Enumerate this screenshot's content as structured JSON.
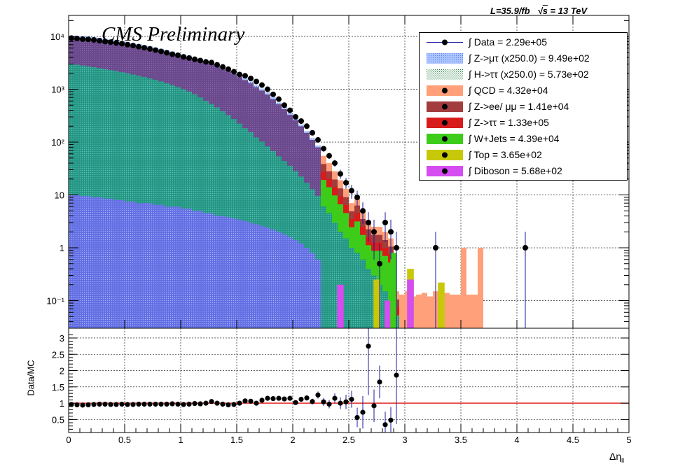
{
  "header": {
    "lumi": "L=35.9/fb",
    "sqrts": "s",
    "energy": " = 13 TeV",
    "title": "CMS Preliminary"
  },
  "legend": {
    "entries": [
      {
        "label": "∫ Data = 2.29e+05",
        "color": "#000000",
        "kind": "data"
      },
      {
        "label": "∫ Z->μτ (x250.0) = 9.49e+02",
        "color": "#5b8df5",
        "kind": "hatch"
      },
      {
        "label": "∫ H->ττ (x250.0) = 5.73e+02",
        "color": "#2e8b57",
        "kind": "hatch"
      },
      {
        "label": "∫ QCD = 4.32e+04",
        "color": "#ffa07a",
        "kind": "fill"
      },
      {
        "label": "∫ Z->ee/ μμ = 1.41e+04",
        "color": "#a33c3c",
        "kind": "fill"
      },
      {
        "label": "∫ Z->ττ = 1.33e+05",
        "color": "#d81b1b",
        "kind": "fill"
      },
      {
        "label": "∫ W+Jets = 4.39e+04",
        "color": "#3dcc1a",
        "kind": "fill"
      },
      {
        "label": "∫ Top = 3.65e+02",
        "color": "#c8c80a",
        "kind": "fill"
      },
      {
        "label": "∫ Diboson = 5.68e+02",
        "color": "#d54cf0",
        "kind": "fill"
      }
    ]
  },
  "axes": {
    "ylabel_ratio": "Data/MC",
    "xlabel": "Δη",
    "xlabel_sub": "ll"
  },
  "chart_data": [
    {
      "type": "bar",
      "subtype": "stacked-histogram",
      "log_y": true,
      "xlim": [
        0,
        5
      ],
      "ylim": [
        0.03,
        25000
      ],
      "xticks": [
        0,
        0.5,
        1,
        1.5,
        2,
        2.5,
        3,
        3.5,
        4,
        4.5,
        5
      ],
      "yticks": [
        0.1,
        1,
        10,
        100,
        1000,
        10000
      ],
      "ytick_labels": [
        "10⁻¹",
        "1",
        "10",
        "10²",
        "10³",
        "10⁴"
      ],
      "grid": true,
      "legend_position": "top-right",
      "bin_width": 0.05,
      "x_bin_centers": [
        0.025,
        0.075,
        0.125,
        0.175,
        0.225,
        0.275,
        0.325,
        0.375,
        0.425,
        0.475,
        0.525,
        0.575,
        0.625,
        0.675,
        0.725,
        0.775,
        0.825,
        0.875,
        0.925,
        0.975,
        1.025,
        1.075,
        1.125,
        1.175,
        1.225,
        1.275,
        1.325,
        1.375,
        1.425,
        1.475,
        1.525,
        1.575,
        1.625,
        1.675,
        1.725,
        1.775,
        1.825,
        1.875,
        1.925,
        1.975,
        2.025,
        2.075,
        2.125,
        2.175,
        2.225,
        2.275,
        2.325,
        2.375,
        2.425,
        2.475,
        2.525,
        2.575,
        2.625,
        2.675,
        2.725,
        2.775,
        2.825,
        2.875,
        2.925,
        2.975,
        3.025,
        3.075,
        3.125,
        3.175,
        3.225,
        3.275,
        3.325,
        3.375,
        3.425,
        3.475,
        3.525,
        3.575,
        3.625,
        3.675
      ],
      "stack_total": [
        9500,
        9500,
        9400,
        9200,
        9000,
        8700,
        8400,
        8100,
        7800,
        7500,
        7200,
        6900,
        6600,
        6300,
        6000,
        5700,
        5400,
        5100,
        4800,
        4500,
        4250,
        4000,
        3750,
        3500,
        3250,
        3000,
        2700,
        2450,
        2200,
        1950,
        1700,
        1500,
        1300,
        1100,
        950,
        800,
        650,
        520,
        420,
        330,
        260,
        200,
        150,
        110,
        80,
        55,
        40,
        28,
        19,
        13,
        7,
        9,
        5,
        3.2,
        2.5,
        2.5,
        2,
        1.5,
        0.15,
        0.13,
        0.15,
        0.12,
        0.13,
        0.14,
        0.12,
        0.15,
        0.12,
        0.14,
        0.13,
        0.13,
        1,
        0.13,
        0.13,
        1
      ],
      "series": [
        {
          "name": "Z->μτ (x250.0)",
          "values": [
            10,
            10,
            9.5,
            9.5,
            9,
            9,
            8.5,
            8.5,
            8,
            8,
            7.5,
            7.5,
            7,
            7,
            7,
            6.5,
            6.5,
            6,
            6,
            6,
            5.5,
            5.5,
            5,
            5,
            4.5,
            4.5,
            4,
            4,
            3.8,
            3.6,
            3.4,
            3.2,
            3,
            2.8,
            2.6,
            2.4,
            2.2,
            2,
            1.8,
            1.6,
            1.4,
            1.2,
            1,
            0.8,
            0.6,
            0.5,
            0.4,
            0.3,
            0.25,
            0.2,
            0.15,
            0.12,
            0.1,
            0.08,
            0.05,
            0.04,
            0.03,
            0.03,
            0,
            0,
            0,
            0,
            0,
            0,
            0,
            0,
            0,
            0,
            0,
            0,
            0,
            0,
            0,
            0
          ]
        },
        {
          "name": "H->ττ (x250.0)",
          "values": [
            3000,
            2900,
            2800,
            2700,
            2600,
            2500,
            2400,
            2300,
            2200,
            2100,
            2000,
            1900,
            1800,
            1700,
            1600,
            1500,
            1400,
            1300,
            1200,
            1100,
            1000,
            900,
            800,
            700,
            600,
            520,
            450,
            380,
            320,
            270,
            220,
            180,
            150,
            120,
            100,
            80,
            65,
            52,
            42,
            34,
            27,
            21,
            16,
            12,
            9,
            6,
            4.5,
            3,
            2,
            1.5,
            1,
            0.8,
            0.6,
            0.4,
            0.3,
            0.2,
            0.15,
            0.1,
            0,
            0,
            0,
            0,
            0,
            0,
            0,
            0,
            0,
            0,
            0,
            0,
            0,
            0,
            0,
            0
          ]
        }
      ]
    },
    {
      "type": "scatter",
      "name": "Data",
      "x": [
        0.025,
        0.075,
        0.125,
        0.175,
        0.225,
        0.275,
        0.325,
        0.375,
        0.425,
        0.475,
        0.525,
        0.575,
        0.625,
        0.675,
        0.725,
        0.775,
        0.825,
        0.875,
        0.925,
        0.975,
        1.025,
        1.075,
        1.125,
        1.175,
        1.225,
        1.275,
        1.325,
        1.375,
        1.425,
        1.475,
        1.525,
        1.575,
        1.625,
        1.675,
        1.725,
        1.775,
        1.825,
        1.875,
        1.925,
        1.975,
        2.025,
        2.075,
        2.125,
        2.175,
        2.225,
        2.275,
        2.325,
        2.375,
        2.425,
        2.475,
        2.525,
        2.575,
        2.625,
        2.675,
        2.725,
        2.775,
        2.825,
        2.875,
        2.925,
        3.275,
        4.075
      ],
      "y": [
        9300,
        9100,
        8900,
        8800,
        8600,
        8300,
        8000,
        7800,
        7500,
        7300,
        7000,
        6700,
        6400,
        6100,
        5800,
        5500,
        5200,
        4900,
        4600,
        4400,
        4100,
        3900,
        3700,
        3500,
        3300,
        3200,
        2900,
        2650,
        2400,
        2150,
        1900,
        1800,
        1600,
        1400,
        1200,
        1000,
        800,
        650,
        500,
        400,
        300,
        250,
        200,
        150,
        110,
        75,
        55,
        40,
        25,
        17,
        12,
        9,
        5,
        3,
        2,
        0.5,
        3,
        2,
        1,
        1,
        1
      ],
      "y_err": [
        96,
        95,
        94,
        94,
        93,
        91,
        89,
        88,
        87,
        85,
        84,
        82,
        80,
        78,
        76,
        74,
        72,
        70,
        68,
        66,
        64,
        62,
        61,
        59,
        57,
        57,
        54,
        51,
        49,
        46,
        44,
        42,
        40,
        37,
        35,
        32,
        28,
        25,
        22,
        20,
        17,
        16,
        14,
        12,
        10,
        9,
        7,
        6,
        5,
        4,
        3.5,
        3,
        2.2,
        1.7,
        1.4,
        0.7,
        1.7,
        1.4,
        1,
        1,
        1
      ]
    },
    {
      "type": "scatter",
      "name": "Data/MC",
      "xlim": [
        0,
        5
      ],
      "ylim": [
        0.1,
        3.3
      ],
      "yticks": [
        0.5,
        1,
        1.5,
        2,
        2.5,
        3
      ],
      "reference_line": 1,
      "x": [
        0.025,
        0.075,
        0.125,
        0.175,
        0.225,
        0.275,
        0.325,
        0.375,
        0.425,
        0.475,
        0.525,
        0.575,
        0.625,
        0.675,
        0.725,
        0.775,
        0.825,
        0.875,
        0.925,
        0.975,
        1.025,
        1.075,
        1.125,
        1.175,
        1.225,
        1.275,
        1.325,
        1.375,
        1.425,
        1.475,
        1.525,
        1.575,
        1.625,
        1.675,
        1.725,
        1.775,
        1.825,
        1.875,
        1.925,
        1.975,
        2.025,
        2.075,
        2.125,
        2.175,
        2.225,
        2.275,
        2.325,
        2.375,
        2.425,
        2.475,
        2.525,
        2.575,
        2.625,
        2.675,
        2.725,
        2.775,
        2.825,
        2.875,
        2.925
      ],
      "y": [
        0.96,
        0.95,
        0.94,
        0.95,
        0.96,
        0.97,
        0.97,
        0.96,
        0.96,
        0.97,
        0.96,
        0.96,
        0.97,
        0.97,
        0.97,
        0.97,
        0.97,
        0.97,
        0.98,
        0.97,
        0.96,
        0.97,
        0.99,
        0.98,
        1.0,
        1.05,
        1.0,
        0.97,
        0.95,
        0.96,
        1.0,
        1.07,
        1.06,
        1.0,
        1.09,
        1.15,
        1.14,
        1.15,
        1.13,
        1.15,
        1.02,
        1.12,
        1.16,
        1.05,
        1.25,
        1.04,
        0.97,
        1.15,
        1.0,
        1.04,
        1.12,
        0.56,
        0.72,
        2.75,
        0.92,
        1.65,
        0.34,
        0.48,
        1.86
      ],
      "y_err": [
        0.01,
        0.01,
        0.01,
        0.01,
        0.01,
        0.01,
        0.01,
        0.01,
        0.01,
        0.01,
        0.01,
        0.01,
        0.01,
        0.01,
        0.01,
        0.01,
        0.01,
        0.01,
        0.01,
        0.01,
        0.01,
        0.01,
        0.02,
        0.02,
        0.02,
        0.02,
        0.02,
        0.02,
        0.02,
        0.02,
        0.02,
        0.03,
        0.03,
        0.03,
        0.04,
        0.04,
        0.04,
        0.05,
        0.05,
        0.05,
        0.06,
        0.07,
        0.08,
        0.09,
        0.11,
        0.12,
        0.13,
        0.15,
        0.18,
        0.22,
        0.26,
        0.3,
        0.5,
        1.5,
        0.5,
        0.5,
        0.4,
        0.4,
        1.5
      ]
    }
  ]
}
